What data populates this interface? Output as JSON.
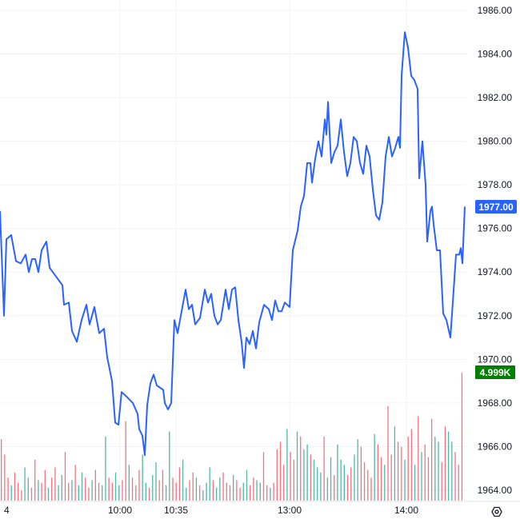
{
  "chart_data": {
    "type": "line",
    "title": "",
    "ylim": [
      1963.6,
      1986.4
    ],
    "y_ticks": [
      "1986.00",
      "1984.00",
      "1982.00",
      "1980.00",
      "1978.00",
      "1976.00",
      "1974.00",
      "1972.00",
      "1970.00",
      "1968.00",
      "1966.00",
      "1964.00"
    ],
    "x_ticks": [
      {
        "label": "4",
        "t": 0
      },
      {
        "label": "10:00",
        "t": 150
      },
      {
        "label": "10:35",
        "t": 220
      },
      {
        "label": "13:00",
        "t": 362
      },
      {
        "label": "14:00",
        "t": 508
      }
    ],
    "last_price_label": "1977.00",
    "volume_label": "4.999K",
    "volume_max": 5000,
    "colors": {
      "line": "#2962ff",
      "up": "#089981",
      "down": "#f23645",
      "price_tag": "#2962ff",
      "volume_tag": "#008000"
    },
    "series": [
      {
        "name": "price",
        "x": [
          0,
          5,
          8,
          14,
          20,
          26,
          32,
          36,
          40,
          44,
          48,
          52,
          58,
          62,
          70,
          78,
          80,
          86,
          90,
          96,
          102,
          108,
          112,
          118,
          124,
          130,
          134,
          140,
          144,
          148,
          152,
          158,
          166,
          172,
          174,
          178,
          181,
          184,
          188,
          192,
          196,
          204,
          206,
          210,
          214,
          218,
          222,
          226,
          232,
          236,
          240,
          244,
          250,
          256,
          260,
          264,
          268,
          272,
          276,
          282,
          286,
          290,
          294,
          298,
          302,
          305,
          308,
          312,
          316,
          320,
          324,
          330,
          336,
          340,
          344,
          348,
          352,
          356,
          362,
          366,
          372,
          376,
          380,
          384,
          388,
          390,
          394,
          398,
          402,
          406,
          408,
          410,
          414,
          418,
          422,
          426,
          430,
          434,
          438,
          442,
          446,
          450,
          454,
          458,
          462,
          466,
          470,
          474,
          478,
          482,
          486,
          490,
          494,
          498,
          500,
          502,
          506,
          510,
          514,
          518,
          522,
          524,
          528,
          532,
          534,
          538,
          540,
          542,
          546,
          550,
          554,
          558,
          563,
          566,
          570,
          574,
          576,
          578,
          581
        ],
        "values": [
          1976.8,
          1972,
          1975.5,
          1975.7,
          1974.5,
          1974.4,
          1974.8,
          1974,
          1974.6,
          1974.6,
          1974,
          1975,
          1975.4,
          1974.2,
          1973.8,
          1973.4,
          1972.5,
          1972.6,
          1971.3,
          1970.8,
          1971.8,
          1972.5,
          1971.6,
          1972.4,
          1971.2,
          1971.4,
          1970.1,
          1969,
          1967.1,
          1967,
          1968.5,
          1968.3,
          1968,
          1967.5,
          1966.8,
          1966.5,
          1965.6,
          1967.9,
          1968.9,
          1969.3,
          1968.8,
          1968.6,
          1968,
          1967.7,
          1968,
          1971.8,
          1971.2,
          1972,
          1973.2,
          1972.3,
          1972.5,
          1971.6,
          1971.9,
          1973.2,
          1972.6,
          1973,
          1972,
          1971.6,
          1971.8,
          1973.2,
          1972.3,
          1973.2,
          1973.3,
          1971.8,
          1970.8,
          1969.6,
          1971,
          1970.7,
          1971.3,
          1970.5,
          1971.7,
          1972.5,
          1972.3,
          1971.8,
          1972.7,
          1972.2,
          1972.2,
          1972.6,
          1972.4,
          1975,
          1975.9,
          1977,
          1977.5,
          1979,
          1979,
          1978.1,
          1979.2,
          1980,
          1979.3,
          1981,
          1980.3,
          1981.8,
          1979,
          1979.5,
          1979.8,
          1981,
          1979.5,
          1978.4,
          1979,
          1980.2,
          1980,
          1979,
          1978.5,
          1979.8,
          1979.3,
          1977.8,
          1976.6,
          1976.4,
          1977.2,
          1979.3,
          1980.2,
          1979.3,
          1979.7,
          1980.2,
          1979.7,
          1983,
          1985,
          1984.3,
          1983,
          1982.8,
          1982.4,
          1978.3,
          1980,
          1978,
          1975.4,
          1976.8,
          1977,
          1976.2,
          1975,
          1975,
          1972.1,
          1971.8,
          1971,
          1972.6,
          1974.8,
          1974.8,
          1975.1,
          1974.4,
          1977
        ]
      }
    ],
    "volume": [
      {
        "v": [
          2400,
          1800,
          900,
          600,
          1100,
          700,
          400,
          1300,
          900,
          500,
          1600,
          800,
          700,
          1200,
          500,
          900,
          1300,
          600,
          1000,
          1900,
          700,
          800,
          1400,
          600,
          1100,
          900,
          500,
          800,
          1200,
          700,
          600,
          2500,
          900,
          700,
          1100,
          600,
          800,
          3100,
          1400,
          900,
          600,
          1200,
          1800,
          700,
          500,
          1000,
          1500,
          800,
          1200,
          600,
          2700,
          900,
          700,
          1300,
          1600,
          500,
          800,
          1100,
          900,
          600,
          400,
          700,
          1300,
          800,
          500,
          900,
          1100,
          700,
          600,
          1000,
          800,
          500,
          700,
          1200,
          600,
          900,
          800,
          700,
          1900,
          600,
          500,
          700,
          2000,
          2300,
          1400,
          2800,
          1900,
          1600,
          2700,
          2500,
          2000,
          2200,
          1800,
          1600,
          1300,
          1100,
          2500,
          900,
          1700,
          1000,
          2200,
          1600,
          1400,
          1000,
          1300,
          1800,
          2400,
          2100,
          1500,
          1200,
          900,
          2600,
          2200,
          1700,
          1400,
          3700,
          1800,
          2900,
          2300,
          2100,
          1600,
          2500,
          2800,
          1400,
          3300,
          1900,
          2200,
          1700,
          3200,
          2500,
          2300,
          1500,
          2900,
          2700,
          2300,
          1900,
          1400,
          4999
        ],
        "dir": "ddduddduudduddudduudduduuddudduudduudduddduuduudduuddduudduduuuduudddudduudduudduddddudduduuduuuduuduuudduuddddudduddudduddududdduudduu"
      }
    ]
  }
}
